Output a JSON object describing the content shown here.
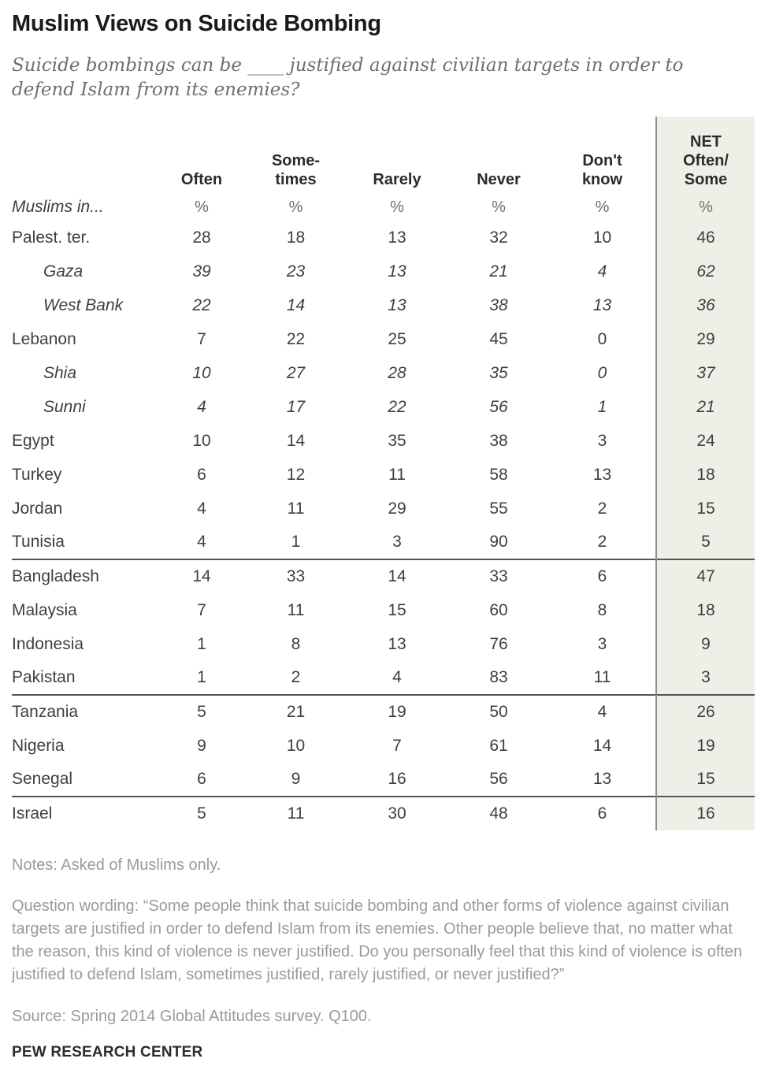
{
  "chart_data": {
    "type": "table",
    "title": "Muslim Views on Suicide Bombing",
    "subtitle": "Suicide bombings can be ____ justified against civilian targets in order to defend Islam from its enemies?",
    "row_header": "Muslims in...",
    "unit": "%",
    "columns": [
      "Often",
      "Some-\ntimes",
      "Rarely",
      "Never",
      "Don't\nknow",
      "NET\nOften/\nSome"
    ],
    "net_column_index": 5,
    "rows": [
      {
        "label": "Palest. ter.",
        "indent": false,
        "separator_above": false,
        "values": [
          28,
          18,
          13,
          32,
          10,
          46
        ]
      },
      {
        "label": "Gaza",
        "indent": true,
        "separator_above": false,
        "values": [
          39,
          23,
          13,
          21,
          4,
          62
        ]
      },
      {
        "label": "West Bank",
        "indent": true,
        "separator_above": false,
        "values": [
          22,
          14,
          13,
          38,
          13,
          36
        ]
      },
      {
        "label": "Lebanon",
        "indent": false,
        "separator_above": false,
        "values": [
          7,
          22,
          25,
          45,
          0,
          29
        ]
      },
      {
        "label": "Shia",
        "indent": true,
        "separator_above": false,
        "values": [
          10,
          27,
          28,
          35,
          0,
          37
        ]
      },
      {
        "label": "Sunni",
        "indent": true,
        "separator_above": false,
        "values": [
          4,
          17,
          22,
          56,
          1,
          21
        ]
      },
      {
        "label": "Egypt",
        "indent": false,
        "separator_above": false,
        "values": [
          10,
          14,
          35,
          38,
          3,
          24
        ]
      },
      {
        "label": "Turkey",
        "indent": false,
        "separator_above": false,
        "values": [
          6,
          12,
          11,
          58,
          13,
          18
        ]
      },
      {
        "label": "Jordan",
        "indent": false,
        "separator_above": false,
        "values": [
          4,
          11,
          29,
          55,
          2,
          15
        ]
      },
      {
        "label": "Tunisia",
        "indent": false,
        "separator_above": false,
        "values": [
          4,
          1,
          3,
          90,
          2,
          5
        ]
      },
      {
        "label": "Bangladesh",
        "indent": false,
        "separator_above": true,
        "values": [
          14,
          33,
          14,
          33,
          6,
          47
        ]
      },
      {
        "label": "Malaysia",
        "indent": false,
        "separator_above": false,
        "values": [
          7,
          11,
          15,
          60,
          8,
          18
        ]
      },
      {
        "label": "Indonesia",
        "indent": false,
        "separator_above": false,
        "values": [
          1,
          8,
          13,
          76,
          3,
          9
        ]
      },
      {
        "label": "Pakistan",
        "indent": false,
        "separator_above": false,
        "values": [
          1,
          2,
          4,
          83,
          11,
          3
        ]
      },
      {
        "label": "Tanzania",
        "indent": false,
        "separator_above": true,
        "values": [
          5,
          21,
          19,
          50,
          4,
          26
        ]
      },
      {
        "label": "Nigeria",
        "indent": false,
        "separator_above": false,
        "values": [
          9,
          10,
          7,
          61,
          14,
          19
        ]
      },
      {
        "label": "Senegal",
        "indent": false,
        "separator_above": false,
        "values": [
          6,
          9,
          16,
          56,
          13,
          15
        ]
      },
      {
        "label": "Israel",
        "indent": false,
        "separator_above": true,
        "values": [
          5,
          11,
          30,
          48,
          6,
          16
        ]
      }
    ]
  },
  "footer": {
    "notes": "Notes: Asked of Muslims only.",
    "question_wording": "Question wording: “Some people think that suicide bombing and other forms of violence against civilian targets are justified in order to defend Islam from its enemies. Other people believe that, no matter what the reason, this kind of violence is never justified. Do you personally feel that this kind of violence is often justified to defend Islam, sometimes justified, rarely justified, or never justified?”",
    "source": "Source: Spring 2014 Global Attitudes survey. Q100.",
    "branding": "PEW RESEARCH CENTER"
  },
  "colors": {
    "title": "#1a1a1a",
    "subtitle_gray": "#6e6e6e",
    "header_text": "#2b2b2b",
    "data_text": "#3f3f3f",
    "muted_gray": "#9a9a9a",
    "net_background": "#f0efe7",
    "net_border": "#8c8c8c",
    "separator": "#555555"
  }
}
